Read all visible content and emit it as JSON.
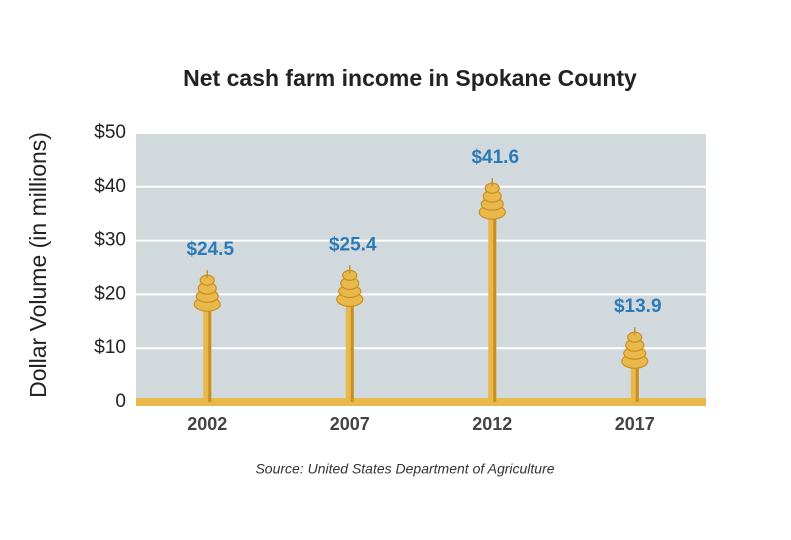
{
  "chart_data": {
    "type": "bar",
    "title": "Net cash farm income in Spokane County",
    "y_label": "Dollar Volume (in millions)",
    "source": "Source: United States Department of Agriculture",
    "categories": [
      "2002",
      "2007",
      "2012",
      "2017"
    ],
    "values": [
      24.5,
      25.4,
      41.6,
      13.9
    ],
    "value_labels": [
      "$24.5",
      "$25.4",
      "$41.6",
      "$13.9"
    ],
    "color": "#e8b84a",
    "ylim": [
      0,
      50
    ],
    "yticks": [
      0,
      {
        "value": 10,
        "label": "$10"
      },
      {
        "value": 20,
        "label": "$20"
      },
      {
        "value": 30,
        "label": "$30"
      },
      {
        "value": 40,
        "label": "$40"
      },
      {
        "value": 50,
        "label": "$50"
      }
    ],
    "grid": true
  }
}
